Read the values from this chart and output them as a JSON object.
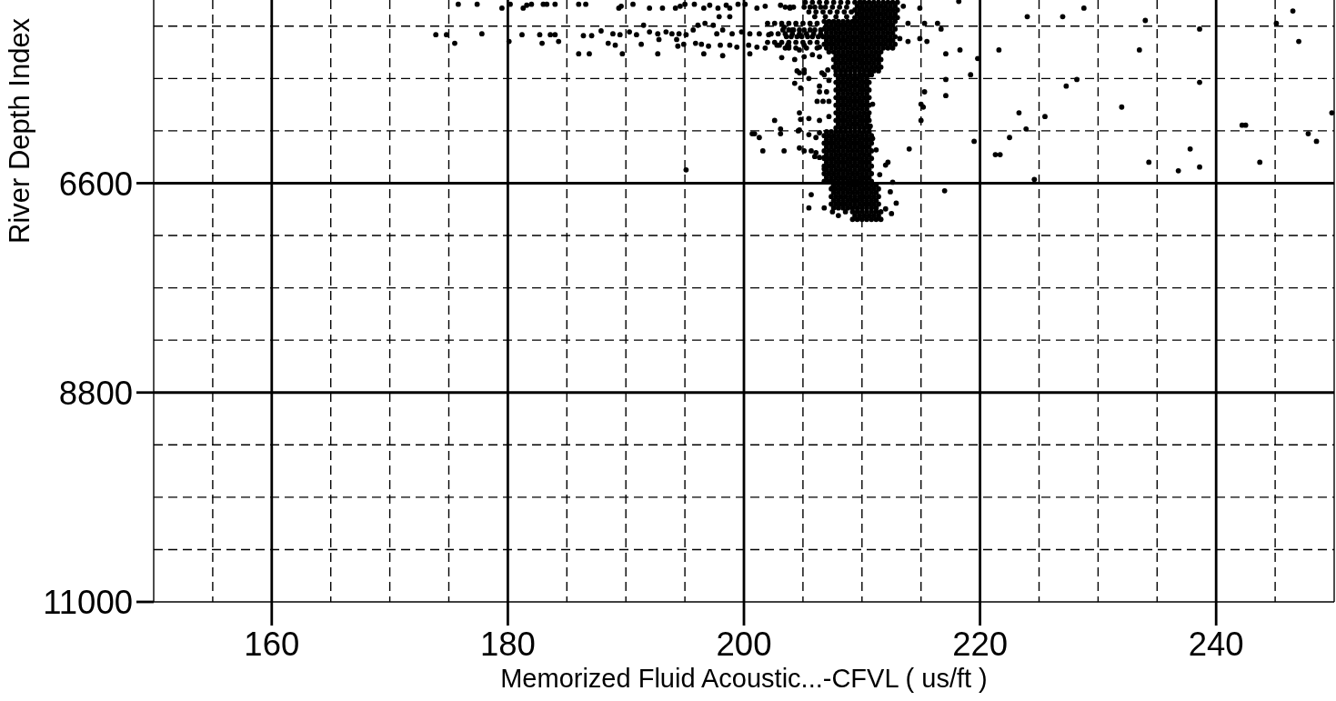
{
  "chart_data": {
    "type": "scatter",
    "xlabel": "Memorized Fluid Acoustic...-CFVL ( us/ft )",
    "ylabel": "River Depth Index",
    "xlim": [
      150,
      250
    ],
    "ylim": [
      11000,
      4675
    ],
    "xticks": [
      {
        "value": 155,
        "label": null
      },
      160,
      {
        "value": 165,
        "label": null
      },
      {
        "value": 170,
        "label": null
      },
      {
        "value": 175,
        "label": null
      },
      180,
      {
        "value": 185,
        "label": null
      },
      {
        "value": 190,
        "label": null
      },
      {
        "value": 195,
        "label": null
      },
      200,
      {
        "value": 205,
        "label": null
      },
      {
        "value": 210,
        "label": null
      },
      {
        "value": 215,
        "label": null
      },
      220,
      {
        "value": 225,
        "label": null
      },
      {
        "value": 230,
        "label": null
      },
      {
        "value": 235,
        "label": null
      },
      240,
      {
        "value": 245,
        "label": null
      }
    ],
    "yticks": [
      {
        "value": 4950,
        "label": null
      },
      {
        "value": 5500,
        "label": null
      },
      {
        "value": 6050,
        "label": null
      },
      6600,
      {
        "value": 7150,
        "label": null
      },
      {
        "value": 7700,
        "label": null
      },
      {
        "value": 8250,
        "label": null
      },
      8800,
      {
        "value": 9350,
        "label": null
      },
      {
        "value": 9900,
        "label": null
      },
      {
        "value": 10450,
        "label": null
      },
      11000
    ],
    "grid": true,
    "marker": "circle",
    "series": [
      {
        "color": "#000000",
        "x": [
          209.4,
          209.8,
          210.2,
          210.6,
          211.0,
          211.4,
          211.8,
          212.2,
          212.6,
          213.0,
          209.6,
          210.0,
          210.4,
          210.8,
          211.2,
          211.6,
          212.0,
          212.4,
          212.8,
          209.4,
          209.8,
          210.2,
          210.6,
          211.0,
          211.4,
          211.8,
          212.2,
          212.6,
          213.0,
          209.6,
          210.0,
          210.4,
          210.8,
          211.2,
          211.6,
          212.0,
          212.4,
          212.8,
          209.4,
          209.8,
          210.2,
          210.6,
          211.0,
          211.4,
          211.8,
          212.2,
          212.6,
          213.0,
          206.8,
          207.2,
          207.6,
          208.0,
          208.4,
          208.8,
          209.2,
          209.6,
          210.0,
          210.4,
          210.8,
          211.2,
          211.6,
          212.0,
          212.4,
          212.8,
          207.0,
          207.4,
          207.8,
          208.2,
          208.6,
          209.0,
          209.4,
          209.8,
          210.2,
          210.6,
          211.0,
          211.4,
          211.8,
          212.2,
          212.6,
          206.8,
          207.2,
          207.6,
          208.0,
          208.4,
          208.8,
          209.2,
          209.6,
          210.0,
          210.4,
          210.8,
          211.2,
          211.6,
          212.0,
          212.4,
          212.8,
          207.0,
          207.4,
          207.8,
          208.2,
          208.6,
          209.0,
          209.4,
          209.8,
          210.2,
          210.6,
          211.0,
          211.4,
          211.8,
          212.2,
          212.6,
          206.8,
          207.2,
          207.6,
          208.0,
          208.4,
          208.8,
          209.2,
          209.6,
          210.0,
          210.4,
          210.8,
          211.2,
          211.6,
          212.0,
          212.4,
          212.8,
          207.0,
          207.4,
          207.8,
          208.2,
          208.6,
          209.0,
          209.4,
          209.8,
          210.2,
          210.6,
          211.0,
          211.4,
          211.8,
          212.2,
          212.6,
          206.8,
          207.2,
          207.6,
          208.0,
          208.4,
          208.8,
          209.2,
          209.6,
          210.0,
          210.4,
          210.8,
          211.2,
          211.6,
          212.0,
          212.4,
          212.8,
          207.0,
          207.4,
          207.8,
          208.2,
          208.6,
          209.0,
          209.4,
          209.8,
          210.2,
          210.6,
          211.0,
          211.4,
          211.8,
          212.2,
          212.6,
          207.6,
          208.0,
          208.4,
          208.8,
          209.2,
          209.6,
          210.0,
          210.4,
          210.8,
          211.2,
          211.6,
          207.8,
          208.2,
          208.6,
          209.0,
          209.4,
          209.8,
          210.2,
          210.6,
          211.0,
          211.4,
          207.6,
          208.0,
          208.4,
          208.8,
          209.2,
          209.6,
          210.0,
          210.4,
          210.8,
          211.2,
          211.6,
          207.8,
          208.2,
          208.6,
          209.0,
          209.4,
          209.8,
          210.2,
          210.6,
          211.0,
          211.4,
          207.6,
          208.0,
          208.4,
          208.8,
          209.2,
          209.6,
          210.0,
          210.4,
          210.8,
          211.2,
          211.6,
          207.8,
          208.2,
          208.6,
          209.0,
          209.4,
          209.8,
          210.2,
          210.6,
          211.0,
          211.4,
          207.8,
          208.2,
          208.6,
          209.0,
          209.4,
          209.8,
          210.2,
          210.6,
          208.0,
          208.4,
          208.8,
          209.2,
          209.6,
          210.0,
          210.4,
          207.8,
          208.2,
          208.6,
          209.0,
          209.4,
          209.8,
          210.2,
          210.6,
          208.0,
          208.4,
          208.8,
          209.2,
          209.6,
          210.0,
          210.4,
          207.8,
          208.2,
          208.6,
          209.0,
          209.4,
          209.8,
          210.2,
          210.6,
          208.0,
          208.4,
          208.8,
          209.2,
          209.6,
          210.0,
          210.4,
          207.8,
          208.2,
          208.6,
          209.0,
          209.4,
          209.8,
          210.2,
          210.6,
          208.0,
          208.4,
          208.8,
          209.2,
          209.6,
          210.0,
          210.4,
          207.8,
          208.2,
          208.6,
          209.0,
          209.4,
          209.8,
          210.2,
          210.6,
          208.0,
          208.4,
          208.8,
          209.2,
          209.6,
          210.0,
          210.4,
          207.8,
          208.2,
          208.6,
          209.0,
          209.4,
          209.8,
          210.2,
          210.6,
          208.0,
          208.4,
          208.8,
          209.2,
          209.6,
          210.0,
          210.4,
          207.8,
          208.2,
          208.6,
          209.0,
          209.4,
          209.8,
          210.2,
          210.6,
          208.0,
          208.4,
          208.8,
          209.2,
          209.6,
          210.0,
          210.4,
          207.8,
          208.2,
          208.6,
          209.0,
          209.4,
          209.8,
          210.2,
          210.6,
          207.0,
          207.4,
          207.8,
          208.2,
          208.6,
          209.0,
          209.4,
          209.8,
          210.2,
          210.6,
          206.8,
          207.2,
          207.6,
          208.0,
          208.4,
          208.8,
          209.2,
          209.6,
          210.0,
          210.4,
          210.8,
          207.0,
          207.4,
          207.8,
          208.2,
          208.6,
          209.0,
          209.4,
          209.8,
          210.2,
          210.6,
          206.8,
          207.2,
          207.6,
          208.0,
          208.4,
          208.8,
          209.2,
          209.6,
          210.0,
          210.4,
          210.8,
          207.0,
          207.4,
          207.8,
          208.2,
          208.6,
          209.0,
          209.4,
          209.8,
          210.2,
          210.6,
          206.8,
          207.2,
          207.6,
          208.0,
          208.4,
          208.8,
          209.2,
          209.6,
          210.0,
          210.4,
          210.8,
          207.0,
          207.4,
          207.8,
          208.2,
          208.6,
          209.0,
          209.4,
          209.8,
          210.2,
          210.6,
          206.8,
          207.2,
          207.6,
          208.0,
          208.4,
          208.8,
          209.2,
          209.6,
          210.0,
          210.4,
          210.8,
          207.0,
          207.4,
          207.8,
          208.2,
          208.6,
          209.0,
          209.4,
          209.8,
          210.2,
          210.6,
          206.8,
          207.2,
          207.6,
          208.0,
          208.4,
          208.8,
          209.2,
          209.6,
          210.0,
          210.4,
          210.8,
          207.0,
          207.4,
          207.8,
          208.2,
          208.6,
          209.0,
          209.4,
          209.8,
          210.2,
          210.6,
          206.8,
          207.2,
          207.6,
          208.0,
          208.4,
          208.8,
          209.2,
          209.6,
          210.0,
          210.4,
          210.8,
          207.0,
          207.4,
          207.8,
          208.2,
          208.6,
          209.0,
          209.4,
          209.8,
          210.2,
          210.6,
          206.8,
          207.2,
          207.6,
          208.0,
          208.4,
          208.8,
          209.2,
          209.6,
          210.0,
          210.4,
          210.8,
          207.6,
          208.0,
          208.4,
          208.8,
          209.2,
          209.6,
          210.0,
          210.4,
          210.8,
          211.2,
          207.4,
          207.8,
          208.2,
          208.6,
          209.0,
          209.4,
          209.8,
          210.2,
          210.6,
          211.0,
          211.4,
          207.6,
          208.0,
          208.4,
          208.8,
          209.2,
          209.6,
          210.0,
          210.4,
          210.8,
          211.2,
          207.4,
          207.8,
          208.2,
          208.6,
          209.0,
          209.4,
          209.8,
          210.2,
          210.6,
          211.0,
          211.4,
          207.6,
          208.0,
          208.4,
          208.8,
          209.2,
          209.6,
          210.0,
          210.4,
          210.8,
          211.2,
          207.4,
          207.8,
          208.2,
          208.6,
          209.0,
          209.4,
          209.8,
          210.2,
          210.6,
          211.0,
          211.4,
          207.6,
          208.0,
          208.4,
          208.8,
          209.2,
          209.6,
          210.0,
          210.4,
          210.8,
          211.2,
          209.2,
          209.6,
          210.0,
          210.4,
          210.8,
          211.2,
          211.6,
          209.4,
          209.8,
          210.2,
          210.6,
          211.0,
          211.4,
          209.2,
          209.6,
          210.0,
          210.4,
          210.8,
          211.2,
          211.6,
          205.2,
          205.8,
          206.4,
          207.0,
          207.6,
          208.2,
          208.8,
          205.5,
          206.1,
          206.7,
          207.3,
          207.9,
          208.5,
          209.1,
          206.0,
          206.9,
          207.8,
          208.7,
          202.0,
          202.6,
          203.2,
          203.8,
          204.4,
          205.0,
          205.6,
          206.2,
          202.3,
          202.9,
          203.5,
          204.1,
          204.7,
          205.3,
          205.9,
          206.5,
          202.0,
          202.6,
          203.2,
          203.8,
          204.4,
          205.0,
          205.6,
          206.2,
          203.5,
          204.4,
          205.3,
          206.2,
          213.5,
          213.9,
          213.2,
          202.8,
          203.7,
          205.1,
          206.4,
          205.1,
          206.6,
          207.1,
          175.8,
          177.4,
          179.5,
          180.2,
          181.3,
          181.6,
          182.0,
          183.0,
          183.3,
          184.0,
          186.0,
          186.6,
          189.4,
          189.6,
          190.6,
          192.0,
          193.1,
          194.2,
          194.6,
          195.0,
          195.8,
          196.6,
          197.1,
          197.8,
          198.5,
          198.8,
          199.5,
          200.1,
          201.1,
          201.8,
          203.1,
          203.9,
          197.9,
          198.8,
          173.9,
          174.8,
          175.5,
          177.8,
          180.1,
          181.2,
          182.7,
          182.9,
          183.6,
          184.0,
          184.3,
          186.0,
          186.9,
          186.4,
          187.1,
          187.9,
          188.5,
          189.1,
          189.7,
          188.9,
          189.5,
          190.3,
          190.9,
          191.5,
          192.0,
          192.7,
          193.4,
          193.9,
          194.5,
          191.3,
          192.7,
          192.8,
          194.3,
          194.4,
          194.9,
          195.1,
          195.7,
          196.1,
          196.7,
          197.4,
          195.9,
          196.4,
          197.0,
          196.6,
          198.2,
          197.7,
          198.2,
          199.0,
          199.8,
          200.5,
          201.3,
          202.1,
          198.0,
          198.8,
          199.4,
          200.4,
          201.1,
          201.8,
          200.5,
          203.0,
          203.8,
          203.2,
          204.3,
          203.4,
          204.1,
          204.5,
          204.3,
          204.8,
          202.6,
          203.1,
          203.1,
          200.7,
          200.9,
          201.3,
          201.6,
          203.4,
          204.7,
          204.7,
          204.8,
          195.1,
          218.2,
          224.0,
          227.0,
          228.8,
          234.0,
          238.6,
          245.1,
          246.5,
          247.0,
          221.6,
          233.5,
          227.3,
          228.2,
          238.6,
          232.0,
          223.3,
          225.5,
          223.9,
          222.5,
          249.8,
          242.2,
          242.5,
          247.8,
          248.5,
          221.3,
          221.7,
          234.3,
          237.8,
          238.6,
          236.8,
          243.7,
          224.6,
          217.0,
          219.5,
          219.8,
          219.2,
          217.1,
          218.3,
          217.1,
          217.1,
          215.3,
          215.0,
          215.2,
          215.0,
          214.0,
          215.3,
          216.4,
          216.7,
          214.9,
          214.9,
          215.5,
          213.9,
          205.1,
          205.7,
          206.0,
          205.7,
          205.5,
          206.8,
          207.5,
          208.0,
          208.6,
          212.2,
          212.0,
          211.5,
          212.6,
          212.4,
          212.9,
          212.0,
          212.5,
          211.2,
          210.9,
          207.5,
          203.5,
          203.9,
          204.2,
          205.1,
          205.6,
          206.0,
          206.5,
          206.9,
          207.5,
          208.1,
          208.7,
          203.3,
          203.8,
          204.2,
          204.7,
          205.1,
          205.6,
          206.0,
          206.5,
          203.6,
          204.0,
          204.5,
          204.9,
          205.4,
          205.8,
          206.3,
          206.7,
          203.8,
          204.7,
          205.1,
          205.8,
          206.4,
          207.2,
          204.7,
          205.1,
          205.5,
          206.8,
          207.2,
          206.4,
          206.4,
          207.0,
          206.2,
          206.7,
          207.2,
          204.7,
          205.5,
          206.4,
          207.2,
          204.6,
          205.5,
          206.1,
          206.4,
          206.1,
          206.4,
          206.8,
          206.8,
          210.8,
          210.9,
          210.5,
          210.7
        ],
        "values": [
          4700,
          4700,
          4700,
          4700,
          4700,
          4700,
          4700,
          4700,
          4700,
          4700,
          4740,
          4740,
          4740,
          4740,
          4740,
          4740,
          4740,
          4740,
          4740,
          4780,
          4780,
          4780,
          4780,
          4780,
          4780,
          4780,
          4780,
          4780,
          4780,
          4820,
          4820,
          4820,
          4820,
          4820,
          4820,
          4820,
          4820,
          4820,
          4860,
          4860,
          4860,
          4860,
          4860,
          4860,
          4860,
          4860,
          4860,
          4860,
          4900,
          4900,
          4900,
          4900,
          4900,
          4900,
          4900,
          4900,
          4900,
          4900,
          4900,
          4900,
          4900,
          4900,
          4900,
          4900,
          4940,
          4940,
          4940,
          4940,
          4940,
          4940,
          4940,
          4940,
          4940,
          4940,
          4940,
          4940,
          4940,
          4940,
          4940,
          4980,
          4980,
          4980,
          4980,
          4980,
          4980,
          4980,
          4980,
          4980,
          4980,
          4980,
          4980,
          4980,
          4980,
          4980,
          4980,
          5020,
          5020,
          5020,
          5020,
          5020,
          5020,
          5020,
          5020,
          5020,
          5020,
          5020,
          5020,
          5020,
          5020,
          5020,
          5060,
          5060,
          5060,
          5060,
          5060,
          5060,
          5060,
          5060,
          5060,
          5060,
          5060,
          5060,
          5060,
          5060,
          5060,
          5060,
          5100,
          5100,
          5100,
          5100,
          5100,
          5100,
          5100,
          5100,
          5100,
          5100,
          5100,
          5100,
          5100,
          5100,
          5100,
          5140,
          5140,
          5140,
          5140,
          5140,
          5140,
          5140,
          5140,
          5140,
          5140,
          5140,
          5140,
          5140,
          5140,
          5140,
          5140,
          5180,
          5180,
          5180,
          5180,
          5180,
          5180,
          5180,
          5180,
          5180,
          5180,
          5180,
          5180,
          5180,
          5180,
          5180,
          5220,
          5220,
          5220,
          5220,
          5220,
          5220,
          5220,
          5220,
          5220,
          5220,
          5220,
          5260,
          5260,
          5260,
          5260,
          5260,
          5260,
          5260,
          5260,
          5260,
          5260,
          5300,
          5300,
          5300,
          5300,
          5300,
          5300,
          5300,
          5300,
          5300,
          5300,
          5300,
          5340,
          5340,
          5340,
          5340,
          5340,
          5340,
          5340,
          5340,
          5340,
          5340,
          5380,
          5380,
          5380,
          5380,
          5380,
          5380,
          5380,
          5380,
          5380,
          5380,
          5380,
          5420,
          5420,
          5420,
          5420,
          5420,
          5420,
          5420,
          5420,
          5420,
          5420,
          5460,
          5460,
          5460,
          5460,
          5460,
          5460,
          5460,
          5460,
          5500,
          5500,
          5500,
          5500,
          5500,
          5500,
          5500,
          5540,
          5540,
          5540,
          5540,
          5540,
          5540,
          5540,
          5540,
          5580,
          5580,
          5580,
          5580,
          5580,
          5580,
          5580,
          5620,
          5620,
          5620,
          5620,
          5620,
          5620,
          5620,
          5620,
          5660,
          5660,
          5660,
          5660,
          5660,
          5660,
          5660,
          5700,
          5700,
          5700,
          5700,
          5700,
          5700,
          5700,
          5700,
          5740,
          5740,
          5740,
          5740,
          5740,
          5740,
          5740,
          5780,
          5780,
          5780,
          5780,
          5780,
          5780,
          5780,
          5780,
          5820,
          5820,
          5820,
          5820,
          5820,
          5820,
          5820,
          5860,
          5860,
          5860,
          5860,
          5860,
          5860,
          5860,
          5860,
          5900,
          5900,
          5900,
          5900,
          5900,
          5900,
          5900,
          5940,
          5940,
          5940,
          5940,
          5940,
          5940,
          5940,
          5940,
          5980,
          5980,
          5980,
          5980,
          5980,
          5980,
          5980,
          6020,
          6020,
          6020,
          6020,
          6020,
          6020,
          6020,
          6020,
          6060,
          6060,
          6060,
          6060,
          6060,
          6060,
          6060,
          6060,
          6060,
          6060,
          6100,
          6100,
          6100,
          6100,
          6100,
          6100,
          6100,
          6100,
          6100,
          6100,
          6100,
          6140,
          6140,
          6140,
          6140,
          6140,
          6140,
          6140,
          6140,
          6140,
          6140,
          6180,
          6180,
          6180,
          6180,
          6180,
          6180,
          6180,
          6180,
          6180,
          6180,
          6180,
          6220,
          6220,
          6220,
          6220,
          6220,
          6220,
          6220,
          6220,
          6220,
          6220,
          6260,
          6260,
          6260,
          6260,
          6260,
          6260,
          6260,
          6260,
          6260,
          6260,
          6260,
          6300,
          6300,
          6300,
          6300,
          6300,
          6300,
          6300,
          6300,
          6300,
          6300,
          6340,
          6340,
          6340,
          6340,
          6340,
          6340,
          6340,
          6340,
          6340,
          6340,
          6340,
          6380,
          6380,
          6380,
          6380,
          6380,
          6380,
          6380,
          6380,
          6380,
          6380,
          6420,
          6420,
          6420,
          6420,
          6420,
          6420,
          6420,
          6420,
          6420,
          6420,
          6420,
          6460,
          6460,
          6460,
          6460,
          6460,
          6460,
          6460,
          6460,
          6460,
          6460,
          6500,
          6500,
          6500,
          6500,
          6500,
          6500,
          6500,
          6500,
          6500,
          6500,
          6500,
          6540,
          6540,
          6540,
          6540,
          6540,
          6540,
          6540,
          6540,
          6540,
          6540,
          6580,
          6580,
          6580,
          6580,
          6580,
          6580,
          6580,
          6580,
          6580,
          6580,
          6580,
          6620,
          6620,
          6620,
          6620,
          6620,
          6620,
          6620,
          6620,
          6620,
          6620,
          6660,
          6660,
          6660,
          6660,
          6660,
          6660,
          6660,
          6660,
          6660,
          6660,
          6660,
          6700,
          6700,
          6700,
          6700,
          6700,
          6700,
          6700,
          6700,
          6700,
          6700,
          6740,
          6740,
          6740,
          6740,
          6740,
          6740,
          6740,
          6740,
          6740,
          6740,
          6740,
          6780,
          6780,
          6780,
          6780,
          6780,
          6780,
          6780,
          6780,
          6780,
          6780,
          6820,
          6820,
          6820,
          6820,
          6820,
          6820,
          6820,
          6820,
          6820,
          6820,
          6820,
          6860,
          6860,
          6860,
          6860,
          6860,
          6860,
          6860,
          6860,
          6860,
          6860,
          6900,
          6900,
          6900,
          6900,
          6900,
          6900,
          6900,
          6940,
          6940,
          6940,
          6940,
          6940,
          6940,
          6980,
          6980,
          6980,
          6980,
          6980,
          6980,
          6980,
          4700,
          4700,
          4700,
          4700,
          4700,
          4700,
          4700,
          4800,
          4800,
          4800,
          4800,
          4800,
          4800,
          4800,
          4850,
          4850,
          4850,
          4850,
          4920,
          4920,
          4920,
          4920,
          4920,
          4920,
          4920,
          4920,
          5030,
          5030,
          5030,
          5030,
          5030,
          5030,
          5030,
          5030,
          5120,
          5120,
          5120,
          5120,
          5120,
          5120,
          5120,
          5120,
          5180,
          5180,
          5180,
          5180,
          4740,
          4920,
          5080,
          5150,
          5150,
          5270,
          5270,
          5440,
          5440,
          5410,
          4720,
          4720,
          4760,
          4720,
          4760,
          4730,
          4720,
          4720,
          4720,
          4720,
          4720,
          4720,
          4760,
          4740,
          4720,
          4760,
          4760,
          4760,
          4740,
          4720,
          4720,
          4760,
          4730,
          4760,
          4730,
          4760,
          4720,
          4720,
          4760,
          4740,
          4730,
          4760,
          4850,
          4850,
          5040,
          5040,
          5130,
          5030,
          5110,
          5040,
          5040,
          5130,
          5040,
          5040,
          5110,
          5240,
          5240,
          5050,
          5050,
          5000,
          5130,
          5150,
          5240,
          5030,
          5040,
          5010,
          5040,
          4940,
          5010,
          5030,
          5010,
          5030,
          5030,
          5140,
          5240,
          5090,
          5090,
          5160,
          5140,
          5040,
          4990,
          4940,
          4920,
          4940,
          5130,
          5140,
          5160,
          5240,
          5260,
          5030,
          4990,
          5030,
          5010,
          5030,
          5030,
          5040,
          5150,
          5150,
          5170,
          5150,
          5170,
          5180,
          5240,
          5150,
          5180,
          5280,
          5300,
          4960,
          4990,
          5420,
          5550,
          5600,
          5940,
          6030,
          6080,
          6080,
          6080,
          6120,
          6260,
          6260,
          6040,
          6230,
          5930,
          6460,
          4690,
          4850,
          4850,
          4760,
          4890,
          4980,
          4920,
          4790,
          5110,
          5200,
          5200,
          5580,
          5510,
          5540,
          5800,
          5860,
          5900,
          6030,
          6120,
          5860,
          5990,
          5990,
          6080,
          6160,
          6300,
          6300,
          6380,
          6240,
          6430,
          6470,
          6380,
          6560,
          6680,
          6160,
          5290,
          5460,
          5240,
          5200,
          5510,
          5680,
          5640,
          5770,
          5800,
          5940,
          6240,
          4920,
          4920,
          4980,
          4760,
          5080,
          5110,
          5110,
          6260,
          6260,
          6320,
          6720,
          6860,
          6860,
          6900,
          6940,
          6900,
          6380,
          6410,
          6510,
          6590,
          6690,
          6810,
          6870,
          6920,
          6250,
          6130,
          6650,
          4750,
          4750,
          4750,
          4750,
          4750,
          4750,
          4750,
          4750,
          4750,
          4750,
          4750,
          4990,
          4990,
          4990,
          4990,
          4990,
          4990,
          4990,
          4990,
          5060,
          5060,
          5060,
          5060,
          5060,
          5060,
          5060,
          5060,
          5160,
          5200,
          5150,
          5250,
          5170,
          5220,
          5440,
          5410,
          5500,
          5460,
          5520,
          5580,
          5640,
          5640,
          5740,
          5740,
          5740,
          5860,
          5920,
          5940,
          5900,
          6050,
          6090,
          6120,
          6070,
          6280,
          6330,
          6330,
          6450,
          5460,
          5770,
          5900,
          6000
        ]
      }
    ]
  }
}
